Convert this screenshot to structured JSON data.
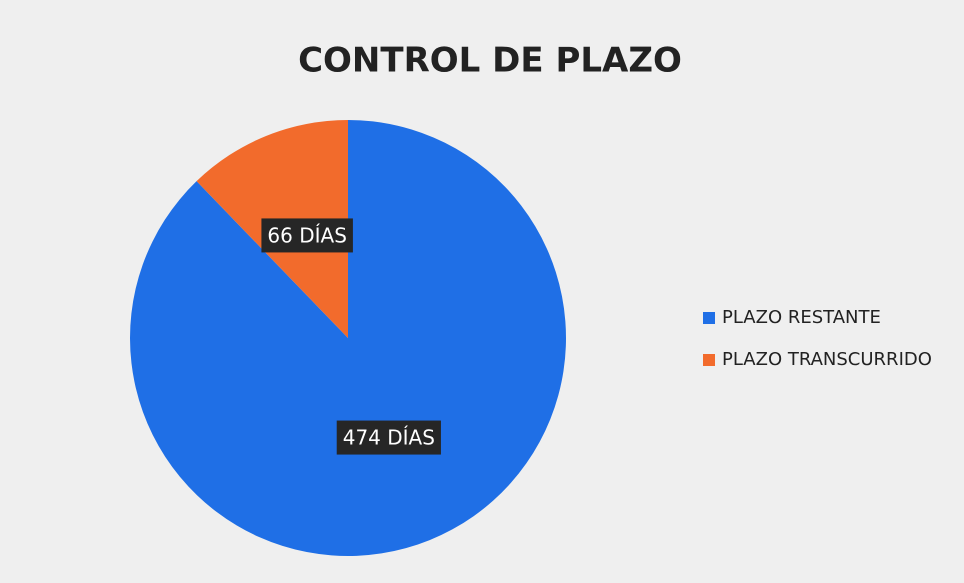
{
  "chart_data": {
    "type": "pie",
    "title": "CONTROL DE PLAZO",
    "categories": [
      "PLAZO RESTANTE",
      "PLAZO TRANSCURRIDO"
    ],
    "values": [
      474,
      66
    ],
    "value_labels": [
      "474 DÍAS",
      "66 DÍAS"
    ],
    "colors": [
      "#1f6fe6",
      "#f26b2c"
    ],
    "legend": "right"
  }
}
